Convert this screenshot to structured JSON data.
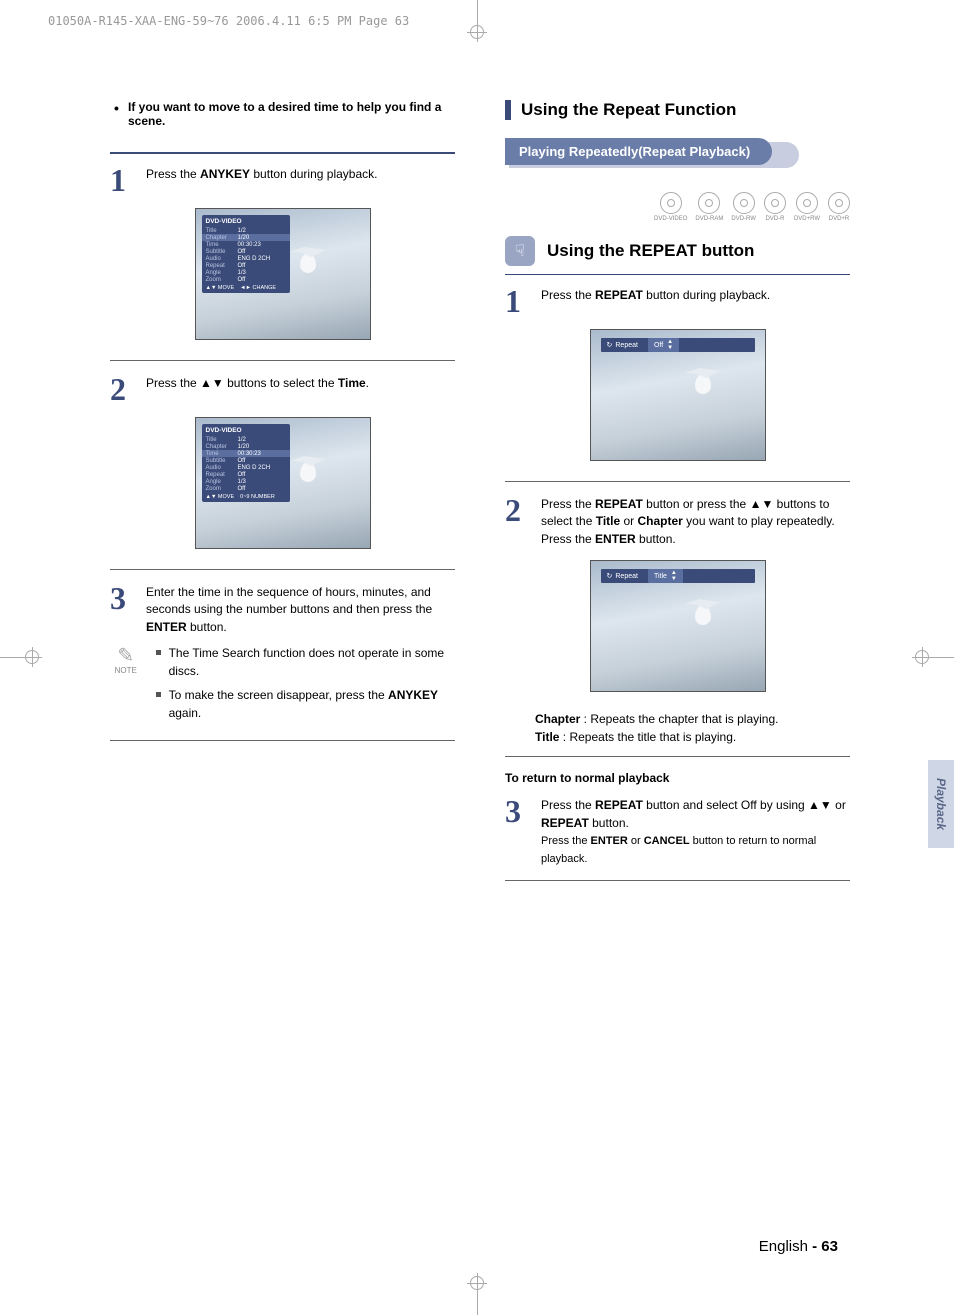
{
  "header": "01050A-R145-XAA-ENG-59~76  2006.4.11  6:5 PM  Page 63",
  "left": {
    "intro": "If you want to move to a desired time to help you find a scene.",
    "step1_a": "Press the ",
    "step1_b": "ANYKEY",
    "step1_c": " button during playback.",
    "step2_a": "Press the ",
    "step2_b": "▲▼",
    "step2_c": " buttons to select the ",
    "step2_d": "Time",
    "step2_e": ".",
    "step3_a": "Enter the time in the sequence of hours, minutes, and seconds using the number buttons and then press the ",
    "step3_b": "ENTER",
    "step3_c": " button.",
    "note_label": "NOTE",
    "note1_a": "The Time Search function does not operate in some discs.",
    "note2_a": "To make the screen disappear, press the ",
    "note2_b": "ANYKEY",
    "note2_c": " again.",
    "panel": {
      "head": "DVD-VIDEO",
      "rows": [
        {
          "label": "Title",
          "val": "1/2"
        },
        {
          "label": "Chapter",
          "val": "1/20"
        },
        {
          "label": "Time",
          "val": "00:30:23"
        },
        {
          "label": "Subtitle",
          "val": "Off"
        },
        {
          "label": "Audio",
          "val": "ENG D 2CH"
        },
        {
          "label": "Repeat",
          "val": "Off"
        },
        {
          "label": "Angle",
          "val": "1/3"
        },
        {
          "label": "Zoom",
          "val": "Off"
        }
      ],
      "foot1_a": "▲▼ MOVE",
      "foot1_b": "◄► CHANGE",
      "foot2_a": "▲▼ MOVE",
      "foot2_b": "0~9 NUMBER"
    }
  },
  "right": {
    "section_title": "Using the Repeat Function",
    "pill": "Playing Repeatedly(Repeat Playback)",
    "discs": [
      "DVD-VIDEO",
      "DVD-RAM",
      "DVD-RW",
      "DVD-R",
      "DVD+RW",
      "DVD+R"
    ],
    "sub_heading": "Using the REPEAT button",
    "step1_a": "Press the ",
    "step1_b": "REPEAT",
    "step1_c": " button during playback.",
    "repeat_bar1_label": "Repeat",
    "repeat_bar1_val": "Off",
    "step2_a": "Press the ",
    "step2_b": "REPEAT",
    "step2_c": " button or press the ",
    "step2_d": "▲▼",
    "step2_e": " buttons to select the ",
    "step2_f": "Title",
    "step2_g": " or ",
    "step2_h": "Chapter",
    "step2_i": " you want to play repeatedly.",
    "step2_j": "Press the ",
    "step2_k": "ENTER",
    "step2_l": " button.",
    "repeat_bar2_label": "Repeat",
    "repeat_bar2_val": "Title",
    "desc1_a": "Chapter",
    "desc1_b": " : Repeats the chapter that is playing.",
    "desc2_a": "Title",
    "desc2_b": " : Repeats the title that is playing.",
    "return_head": "To return to normal playback",
    "step3_a": "Press the ",
    "step3_b": "REPEAT",
    "step3_c": " button and select Off by using ",
    "step3_d": "▲▼",
    "step3_e": " or ",
    "step3_f": "REPEAT",
    "step3_g": " button.",
    "step3_h": "Press the ",
    "step3_i": "ENTER",
    "step3_j": " or ",
    "step3_k": "CANCEL",
    "step3_l": " button to return to normal playback."
  },
  "side_tab": "Playback",
  "footer_a": "English ",
  "footer_b": "- 63"
}
